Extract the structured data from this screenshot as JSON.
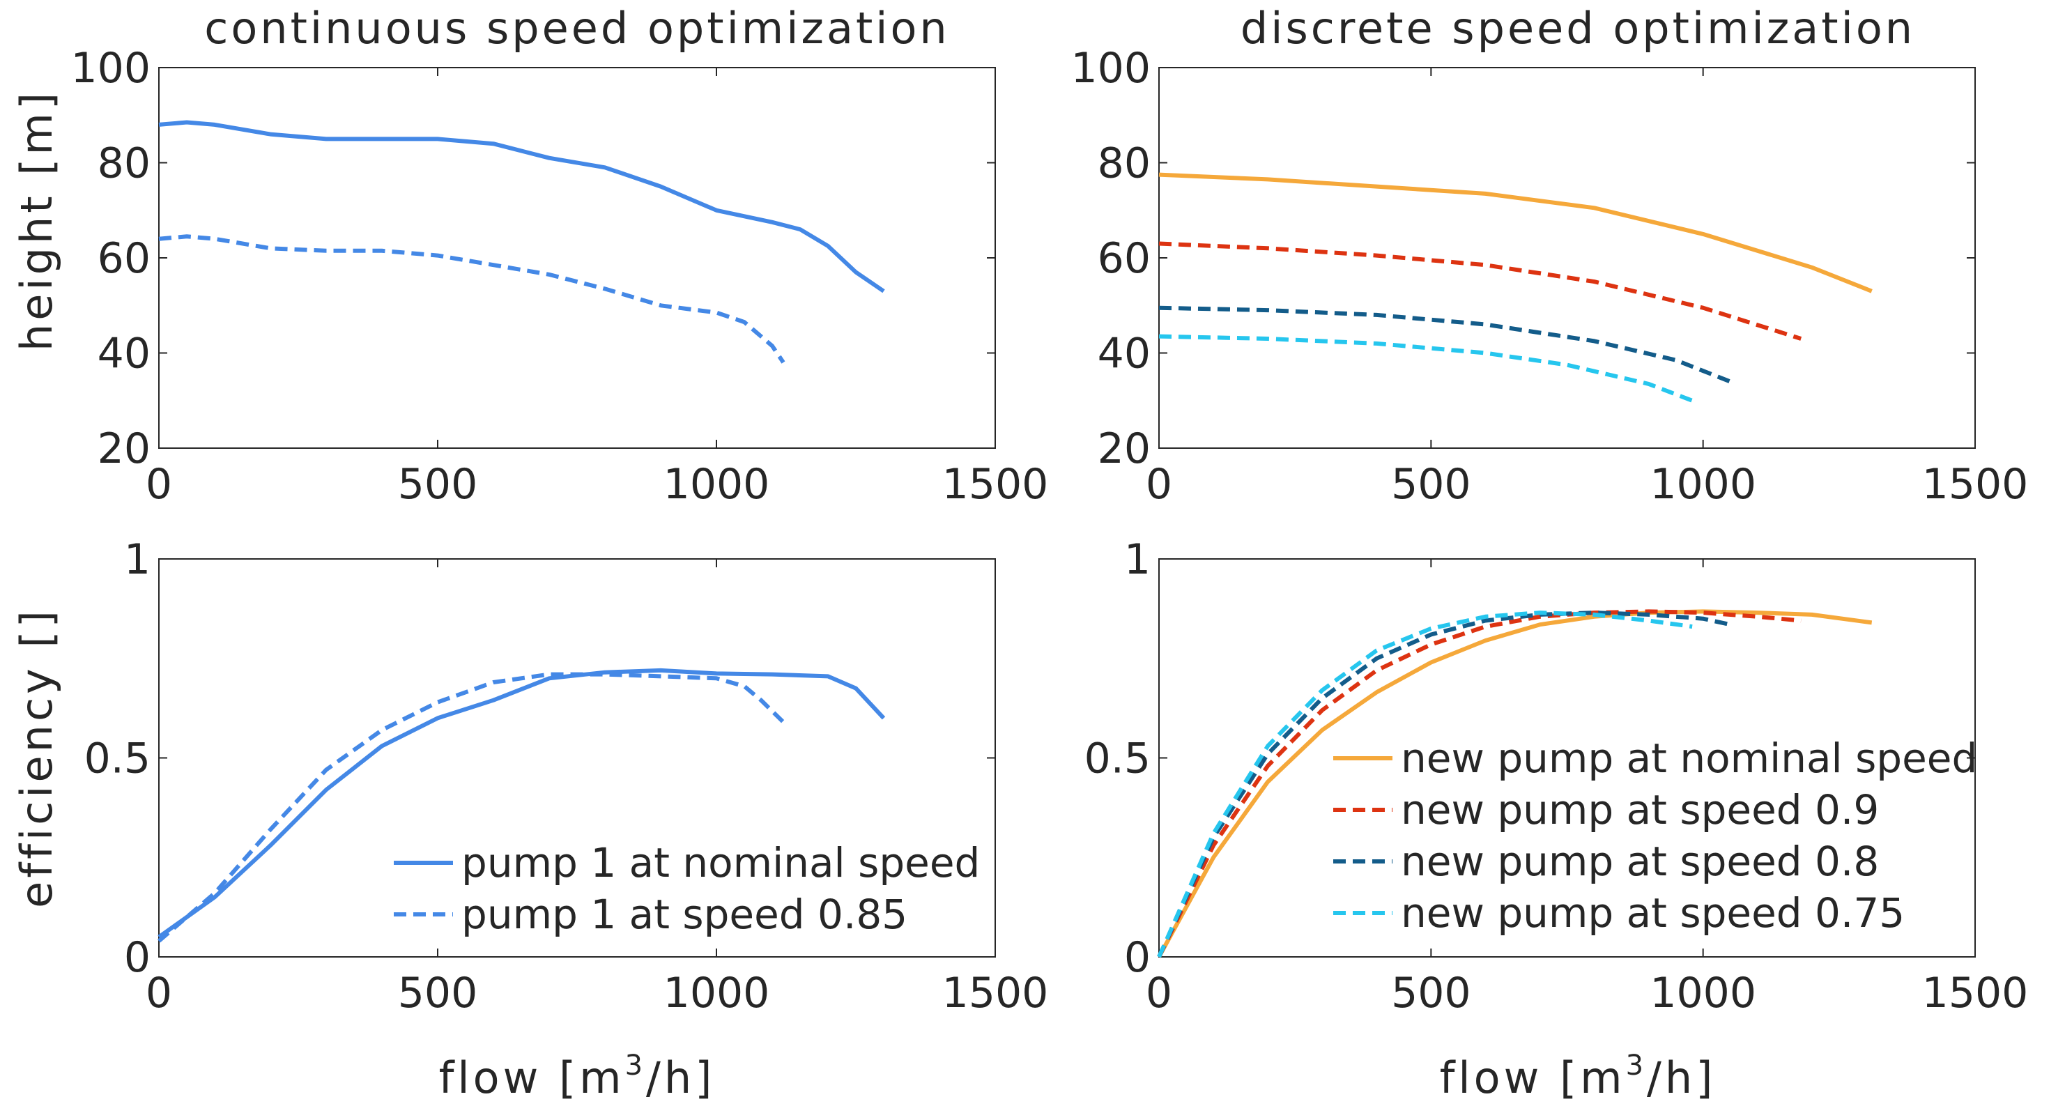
{
  "figure": {
    "titles": {
      "left": "continuous speed optimization",
      "right": "discrete speed optimization"
    },
    "ylabel_top": "height [m]",
    "ylabel_bottom": "efficiency []",
    "xlabel_prefix": "flow [m",
    "xlabel_sup": "3",
    "xlabel_suffix": "/h]"
  },
  "chart_data": [
    {
      "id": "tl",
      "type": "line",
      "title": "continuous speed optimization",
      "xlabel": "",
      "ylabel": "height [m]",
      "xlim": [
        0,
        1500
      ],
      "ylim": [
        20,
        100
      ],
      "xticks": [
        "0",
        "500",
        "1000",
        "1500"
      ],
      "yticks": [
        "20",
        "40",
        "60",
        "80",
        "100"
      ],
      "series": [
        {
          "name": "pump 1 at nominal speed",
          "color": "#4488e6",
          "dash": "solid",
          "x": [
            0,
            50,
            100,
            200,
            300,
            400,
            500,
            600,
            700,
            800,
            900,
            1000,
            1100,
            1150,
            1200,
            1250,
            1300
          ],
          "y": [
            88,
            88.5,
            88,
            86,
            85,
            85,
            85,
            84,
            81,
            79,
            75,
            70,
            67.5,
            66,
            62.5,
            57,
            53
          ]
        },
        {
          "name": "pump 1 at speed 0.85",
          "color": "#4488e6",
          "dash": "dashed",
          "x": [
            0,
            50,
            100,
            200,
            300,
            400,
            500,
            600,
            700,
            800,
            900,
            1000,
            1050,
            1100,
            1120
          ],
          "y": [
            64,
            64.5,
            64,
            62,
            61.5,
            61.5,
            60.5,
            58.5,
            56.5,
            53.5,
            50,
            48.5,
            46.5,
            41.5,
            38
          ]
        }
      ]
    },
    {
      "id": "tr",
      "type": "line",
      "title": "discrete speed optimization",
      "xlabel": "",
      "ylabel": "",
      "xlim": [
        0,
        1500
      ],
      "ylim": [
        20,
        100
      ],
      "xticks": [
        "0",
        "500",
        "1000",
        "1500"
      ],
      "yticks": [
        "20",
        "40",
        "60",
        "80",
        "100"
      ],
      "series": [
        {
          "name": "new pump at nominal speed",
          "color": "#f5a83a",
          "dash": "solid",
          "x": [
            0,
            200,
            400,
            600,
            800,
            1000,
            1200,
            1310
          ],
          "y": [
            77.5,
            76.5,
            75,
            73.5,
            70.5,
            65,
            58,
            53
          ]
        },
        {
          "name": "new pump at speed 0.9",
          "color": "#dd3311",
          "dash": "dashed",
          "x": [
            0,
            200,
            400,
            600,
            800,
            1000,
            1180
          ],
          "y": [
            63,
            62,
            60.5,
            58.5,
            55,
            49.5,
            43
          ]
        },
        {
          "name": "new pump at speed 0.8",
          "color": "#135c8a",
          "dash": "dashed",
          "x": [
            0,
            200,
            400,
            600,
            800,
            950,
            1050
          ],
          "y": [
            49.5,
            49,
            48,
            46,
            42.5,
            38.5,
            34
          ]
        },
        {
          "name": "new pump at speed 0.75",
          "color": "#26c6ee",
          "dash": "dashed",
          "x": [
            0,
            200,
            400,
            600,
            750,
            900,
            980
          ],
          "y": [
            43.5,
            43,
            42,
            40,
            37.5,
            33.5,
            30
          ]
        }
      ]
    },
    {
      "id": "bl",
      "type": "line",
      "title": "",
      "xlabel": "flow [m3/h]",
      "ylabel": "efficiency []",
      "xlim": [
        0,
        1500
      ],
      "ylim": [
        0,
        1
      ],
      "xticks": [
        "0",
        "500",
        "1000",
        "1500"
      ],
      "yticks": [
        "0",
        "0.5",
        "1"
      ],
      "legend": "bottom-right",
      "series": [
        {
          "name": "pump 1 at nominal speed",
          "color": "#4488e6",
          "dash": "solid",
          "x": [
            0,
            100,
            200,
            300,
            400,
            500,
            600,
            700,
            800,
            900,
            1000,
            1100,
            1200,
            1250,
            1300
          ],
          "y": [
            0.05,
            0.15,
            0.28,
            0.42,
            0.53,
            0.6,
            0.645,
            0.7,
            0.715,
            0.72,
            0.712,
            0.71,
            0.705,
            0.675,
            0.6
          ]
        },
        {
          "name": "pump 1 at speed 0.85",
          "color": "#4488e6",
          "dash": "dashed",
          "x": [
            0,
            100,
            200,
            300,
            400,
            500,
            600,
            700,
            800,
            900,
            1000,
            1050,
            1080,
            1120
          ],
          "y": [
            0.04,
            0.16,
            0.32,
            0.47,
            0.57,
            0.64,
            0.69,
            0.71,
            0.71,
            0.705,
            0.7,
            0.68,
            0.645,
            0.59
          ]
        }
      ]
    },
    {
      "id": "br",
      "type": "line",
      "title": "",
      "xlabel": "flow [m3/h]",
      "ylabel": "",
      "xlim": [
        0,
        1500
      ],
      "ylim": [
        0,
        1
      ],
      "xticks": [
        "0",
        "500",
        "1000",
        "1500"
      ],
      "yticks": [
        "0",
        "0.5",
        "1"
      ],
      "legend": "bottom-right",
      "series": [
        {
          "name": "new pump at nominal speed",
          "color": "#f5a83a",
          "dash": "solid",
          "x": [
            0,
            100,
            200,
            300,
            400,
            500,
            600,
            700,
            800,
            900,
            1000,
            1100,
            1200,
            1310
          ],
          "y": [
            0.0,
            0.25,
            0.44,
            0.57,
            0.665,
            0.74,
            0.795,
            0.835,
            0.855,
            0.865,
            0.868,
            0.865,
            0.86,
            0.84
          ]
        },
        {
          "name": "new pump at speed 0.9",
          "color": "#dd3311",
          "dash": "dashed",
          "x": [
            0,
            100,
            200,
            300,
            400,
            500,
            600,
            700,
            800,
            900,
            1000,
            1100,
            1180
          ],
          "y": [
            0.0,
            0.28,
            0.48,
            0.62,
            0.72,
            0.785,
            0.83,
            0.855,
            0.865,
            0.868,
            0.865,
            0.855,
            0.845
          ]
        },
        {
          "name": "new pump at speed 0.8",
          "color": "#135c8a",
          "dash": "dashed",
          "x": [
            0,
            100,
            200,
            300,
            400,
            500,
            600,
            700,
            800,
            900,
            1000,
            1050
          ],
          "y": [
            0.0,
            0.3,
            0.51,
            0.65,
            0.75,
            0.81,
            0.845,
            0.86,
            0.865,
            0.86,
            0.85,
            0.835
          ]
        },
        {
          "name": "new pump at speed 0.75",
          "color": "#26c6ee",
          "dash": "dashed",
          "x": [
            0,
            100,
            200,
            300,
            400,
            500,
            600,
            700,
            800,
            900,
            980
          ],
          "y": [
            0.0,
            0.31,
            0.53,
            0.67,
            0.77,
            0.825,
            0.855,
            0.865,
            0.86,
            0.845,
            0.83
          ]
        }
      ]
    }
  ]
}
